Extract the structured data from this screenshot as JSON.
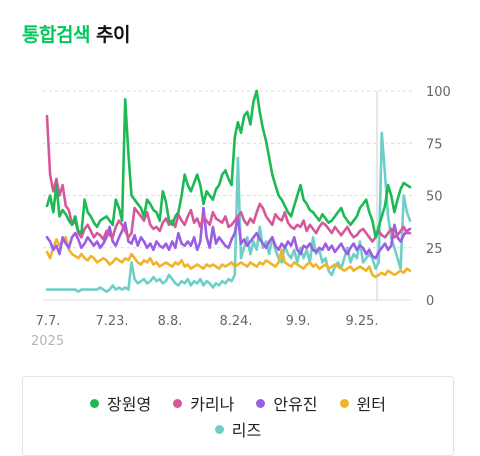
{
  "header": {
    "title_accent": "통합검색",
    "title_rest": "추이"
  },
  "year_label": "2025",
  "chart_data": {
    "type": "line",
    "title": "통합검색 추이",
    "x_ticks": [
      "7.7.",
      "7.23.",
      "8.8.",
      "8.24.",
      "9.9.",
      "9.25."
    ],
    "y_ticks": [
      0,
      25,
      50,
      75,
      100
    ],
    "ylim": [
      0,
      100
    ],
    "grid": "horizontal dashed",
    "legend_position": "bottom",
    "series": [
      {
        "name": "장원영",
        "color": "#1db954",
        "values": [
          45,
          50,
          42,
          55,
          40,
          43,
          41,
          38,
          36,
          40,
          33,
          32,
          48,
          42,
          40,
          37,
          35,
          38,
          39,
          40,
          38,
          36,
          48,
          44,
          38,
          96,
          70,
          50,
          48,
          46,
          44,
          40,
          48,
          46,
          43,
          42,
          38,
          52,
          47,
          38,
          36,
          40,
          42,
          50,
          60,
          55,
          52,
          56,
          60,
          55,
          46,
          52,
          50,
          48,
          53,
          55,
          60,
          62,
          58,
          55,
          78,
          85,
          80,
          88,
          90,
          84,
          95,
          100,
          90,
          82,
          76,
          68,
          60,
          55,
          50,
          48,
          45,
          42,
          40,
          45,
          50,
          55,
          48,
          46,
          43,
          42,
          40,
          38,
          41,
          39,
          37,
          38,
          40,
          42,
          44,
          40,
          38,
          36,
          38,
          40,
          44,
          46,
          48,
          42,
          38,
          30,
          35,
          40,
          45,
          55,
          50,
          42,
          48,
          53,
          56,
          55,
          54
        ]
      },
      {
        "name": "카리나",
        "color": "#d6589a",
        "values": [
          88,
          60,
          52,
          58,
          50,
          55,
          45,
          43,
          36,
          38,
          32,
          30,
          34,
          36,
          33,
          30,
          32,
          31,
          29,
          33,
          31,
          30,
          35,
          38,
          36,
          33,
          30,
          32,
          44,
          42,
          40,
          38,
          42,
          36,
          34,
          35,
          33,
          37,
          39,
          36,
          38,
          35,
          41,
          38,
          36,
          40,
          43,
          37,
          39,
          35,
          40,
          38,
          36,
          42,
          39,
          38,
          37,
          40,
          35,
          36,
          38,
          40,
          42,
          38,
          36,
          39,
          37,
          42,
          46,
          44,
          40,
          38,
          36,
          41,
          39,
          38,
          42,
          37,
          35,
          34,
          36,
          35,
          38,
          33,
          36,
          34,
          32,
          35,
          37,
          36,
          34,
          32,
          35,
          33,
          31,
          33,
          35,
          32,
          30,
          31,
          33,
          34,
          32,
          30,
          28,
          30,
          33,
          31,
          30,
          32,
          34,
          30,
          31,
          33,
          35,
          32,
          32
        ]
      },
      {
        "name": "안유진",
        "color": "#9b5de5",
        "values": [
          30,
          28,
          24,
          26,
          22,
          30,
          27,
          25,
          30,
          32,
          29,
          25,
          27,
          30,
          28,
          26,
          28,
          25,
          27,
          30,
          35,
          28,
          26,
          30,
          33,
          37,
          28,
          27,
          31,
          26,
          30,
          28,
          25,
          27,
          24,
          28,
          26,
          25,
          27,
          24,
          28,
          25,
          32,
          27,
          26,
          28,
          26,
          30,
          24,
          28,
          44,
          30,
          25,
          35,
          27,
          30,
          28,
          26,
          25,
          29,
          32,
          40,
          27,
          29,
          26,
          28,
          30,
          32,
          29,
          27,
          25,
          28,
          30,
          26,
          24,
          27,
          25,
          28,
          26,
          30,
          24,
          22,
          26,
          25,
          27,
          24,
          23,
          25,
          24,
          27,
          24,
          26,
          23,
          25,
          27,
          24,
          22,
          25,
          27,
          24,
          26,
          25,
          22,
          24,
          21,
          20,
          23,
          25,
          27,
          24,
          26,
          36,
          30,
          28,
          31,
          33,
          34
        ]
      },
      {
        "name": "윈터",
        "color": "#f0b429",
        "values": [
          23,
          20,
          25,
          29,
          26,
          28,
          30,
          24,
          22,
          21,
          20,
          22,
          20,
          19,
          21,
          20,
          18,
          19,
          20,
          19,
          17,
          18,
          20,
          19,
          18,
          20,
          19,
          22,
          20,
          18,
          17,
          19,
          18,
          20,
          17,
          18,
          16,
          17,
          18,
          17,
          16,
          18,
          17,
          19,
          16,
          17,
          15,
          16,
          17,
          16,
          15,
          17,
          16,
          17,
          16,
          15,
          17,
          16,
          17,
          18,
          16,
          17,
          18,
          17,
          16,
          18,
          17,
          16,
          18,
          17,
          19,
          18,
          17,
          16,
          18,
          24,
          18,
          17,
          16,
          18,
          17,
          16,
          15,
          17,
          18,
          16,
          17,
          15,
          16,
          17,
          15,
          16,
          17,
          16,
          15,
          14,
          15,
          16,
          14,
          15,
          16,
          15,
          14,
          16,
          12,
          11,
          12,
          13,
          12,
          14,
          13,
          12,
          13,
          14,
          13,
          15,
          14
        ]
      },
      {
        "name": "리즈",
        "color": "#6ecfc9",
        "values": [
          5,
          5,
          5,
          5,
          5,
          5,
          5,
          5,
          5,
          5,
          4,
          5,
          5,
          5,
          5,
          5,
          5,
          6,
          5,
          4,
          5,
          7,
          5,
          6,
          5,
          6,
          5,
          18,
          10,
          8,
          9,
          10,
          8,
          9,
          11,
          9,
          10,
          8,
          9,
          12,
          10,
          8,
          7,
          9,
          8,
          10,
          7,
          9,
          8,
          10,
          7,
          9,
          8,
          6,
          8,
          7,
          9,
          8,
          10,
          9,
          12,
          68,
          20,
          25,
          30,
          22,
          28,
          24,
          35,
          25,
          28,
          22,
          30,
          24,
          20,
          18,
          26,
          22,
          20,
          24,
          18,
          25,
          20,
          24,
          18,
          30,
          22,
          24,
          18,
          20,
          14,
          12,
          16,
          18,
          15,
          20,
          25,
          18,
          22,
          20,
          28,
          18,
          20,
          22,
          20,
          15,
          18,
          80,
          60,
          40,
          30,
          25,
          20,
          15,
          50,
          42,
          38
        ]
      }
    ]
  }
}
